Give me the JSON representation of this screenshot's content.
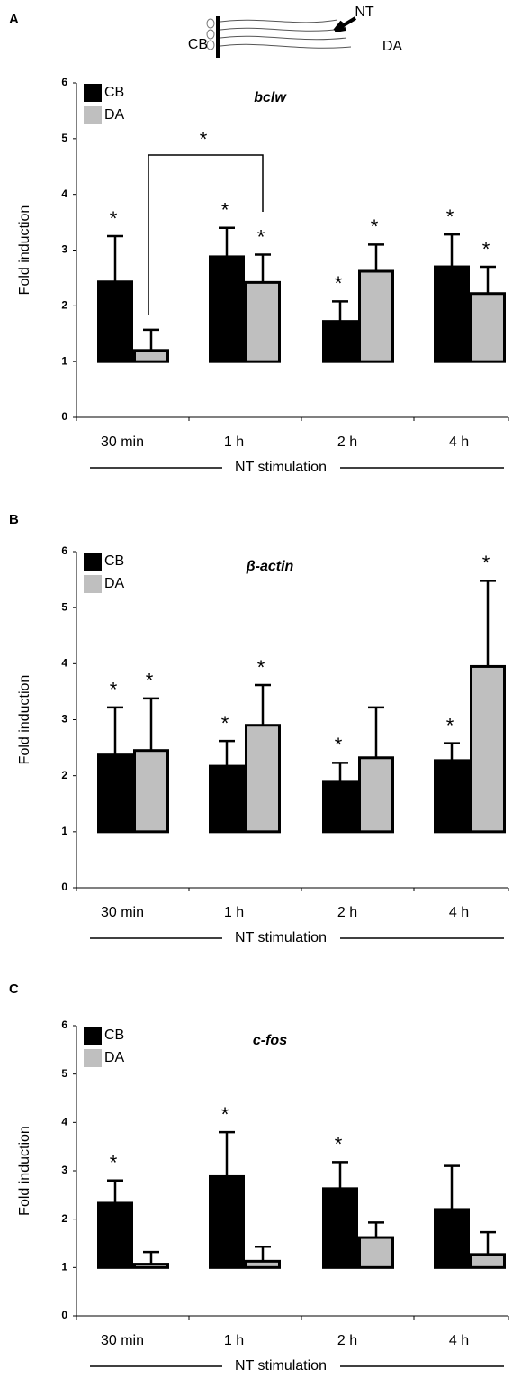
{
  "schematic": {
    "cb": "CB",
    "nt": "NT",
    "da": "DA"
  },
  "chart_data": [
    {
      "type": "bar",
      "panel": "A",
      "title": "bclw",
      "ylabel": "Fold induction",
      "xlabel": "NT stimulation",
      "categories": [
        "30 min",
        "1 h",
        "2 h",
        "4 h"
      ],
      "bar_base": 1,
      "ylim": [
        0,
        6
      ],
      "yticks": [
        0,
        1,
        2,
        3,
        4,
        5,
        6
      ],
      "series": [
        {
          "name": "CB",
          "color": "#000000",
          "values": [
            2.43,
            2.88,
            1.72,
            2.7
          ],
          "errors": [
            0.82,
            0.52,
            0.36,
            0.58
          ],
          "significance": [
            "*",
            "*",
            "*",
            "*"
          ]
        },
        {
          "name": "DA",
          "color": "#bfbfbf",
          "values": [
            1.2,
            2.42,
            2.62,
            2.22
          ],
          "errors": [
            0.37,
            0.5,
            0.48,
            0.48
          ],
          "significance": [
            null,
            "*",
            "*",
            "*"
          ]
        }
      ],
      "bracket_label": "*"
    },
    {
      "type": "bar",
      "panel": "B",
      "title": "β-actin",
      "ylabel": "Fold induction",
      "xlabel": "NT stimulation",
      "categories": [
        "30 min",
        "1 h",
        "2 h",
        "4 h"
      ],
      "bar_base": 1,
      "ylim": [
        0,
        6
      ],
      "yticks": [
        0,
        1,
        2,
        3,
        4,
        5,
        6
      ],
      "series": [
        {
          "name": "CB",
          "color": "#000000",
          "values": [
            2.37,
            2.17,
            1.9,
            2.27
          ],
          "errors": [
            0.85,
            0.45,
            0.33,
            0.31
          ],
          "significance": [
            "*",
            "*",
            "*",
            "*"
          ]
        },
        {
          "name": "DA",
          "color": "#bfbfbf",
          "values": [
            2.45,
            2.9,
            2.32,
            3.95
          ],
          "errors": [
            0.93,
            0.72,
            0.9,
            1.53
          ],
          "significance": [
            "*",
            "*",
            null,
            "*"
          ]
        }
      ]
    },
    {
      "type": "bar",
      "panel": "C",
      "title": "c-fos",
      "ylabel": "Fold induction",
      "xlabel": "NT stimulation",
      "categories": [
        "30 min",
        "1 h",
        "2 h",
        "4 h"
      ],
      "bar_base": 1,
      "ylim": [
        0,
        6
      ],
      "yticks": [
        0,
        1,
        2,
        3,
        4,
        5,
        6
      ],
      "series": [
        {
          "name": "CB",
          "color": "#000000",
          "values": [
            2.33,
            2.88,
            2.63,
            2.2
          ],
          "errors": [
            0.47,
            0.92,
            0.55,
            0.9
          ],
          "significance": [
            "*",
            "*",
            "*",
            null
          ]
        },
        {
          "name": "DA",
          "color": "#bfbfbf",
          "values": [
            1.07,
            1.13,
            1.62,
            1.27
          ],
          "errors": [
            0.25,
            0.3,
            0.31,
            0.46
          ],
          "significance": [
            null,
            null,
            null,
            null
          ]
        }
      ]
    }
  ]
}
